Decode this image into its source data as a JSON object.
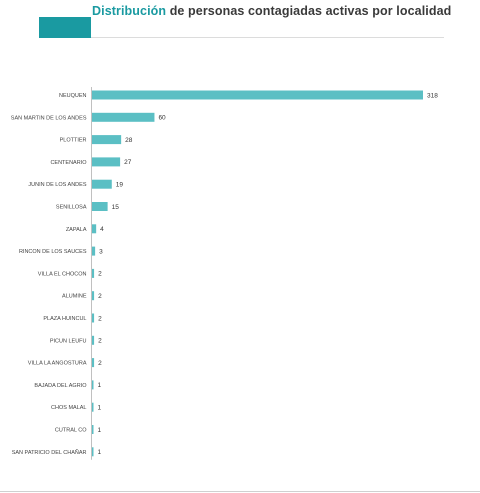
{
  "header": {
    "title_accent": "Distribución",
    "title_rest": " de personas contagiadas activas por localidad",
    "accent_color": "#1a9aa1"
  },
  "chart_data": {
    "type": "bar",
    "orientation": "horizontal",
    "title": "Distribución de personas contagiadas activas por localidad",
    "categories": [
      "NEUQUEN",
      "SAN MARTIN DE LOS ANDES",
      "PLOTTIER",
      "CENTENARIO",
      "JUNIN DE LOS ANDES",
      "SENILLOSA",
      "ZAPALA",
      "RINCON DE LOS SAUCES",
      "VILLA EL CHOCON",
      "ALUMINE",
      "PLAZA HUINCUL",
      "PICUN LEUFU",
      "VILLA LA ANGOSTURA",
      "BAJADA DEL AGRIO",
      "CHOS MALAL",
      "CUTRAL CO",
      "SAN PATRICIO DEL CHAÑAR"
    ],
    "values": [
      318,
      60,
      28,
      27,
      19,
      15,
      4,
      3,
      2,
      2,
      2,
      2,
      2,
      1,
      1,
      1,
      1
    ],
    "xlim": [
      0,
      318
    ],
    "bar_color": "#5bbfc4",
    "axis_color": "#b0b0b0",
    "grid": false,
    "legend": "none"
  }
}
